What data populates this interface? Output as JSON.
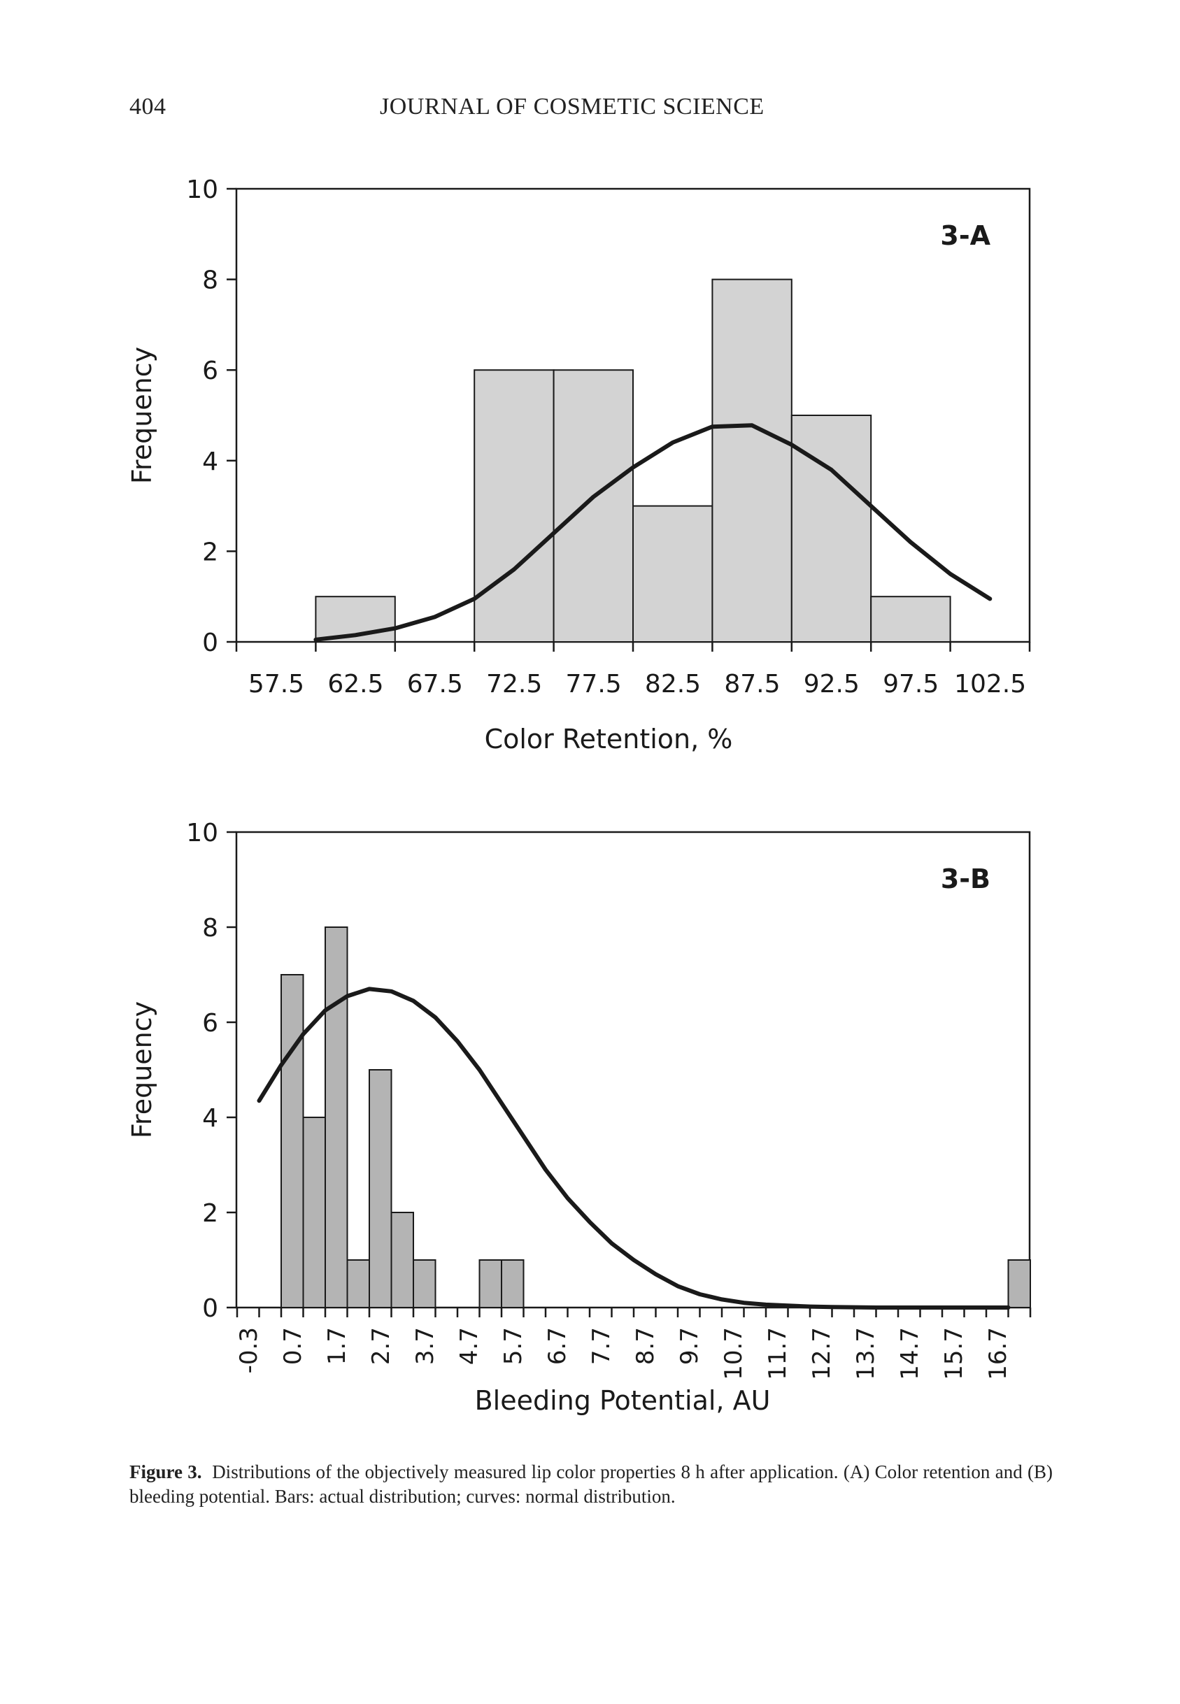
{
  "header": {
    "page_number": "404",
    "journal": "JOURNAL OF COSMETIC SCIENCE"
  },
  "chart_data": [
    {
      "type": "bar",
      "panel": "3-A",
      "xlabel": "Color Retention, %",
      "ylabel": "Frequency",
      "ylim": [
        0,
        10
      ],
      "yticks": [
        0,
        2,
        4,
        6,
        8,
        10
      ],
      "x_tick_labels": [
        "57.5",
        "62.5",
        "67.5",
        "72.5",
        "77.5",
        "82.5",
        "87.5",
        "92.5",
        "97.5",
        "102.5"
      ],
      "series": [
        {
          "name": "actual distribution",
          "values": [
            0,
            1,
            0,
            6,
            6,
            3,
            8,
            5,
            1
          ]
        },
        {
          "name": "normal distribution",
          "x": [
            60,
            62.5,
            65,
            67.5,
            70,
            72.5,
            75,
            77.5,
            80,
            82.5,
            85,
            87.5,
            90,
            92.5,
            95,
            97.5,
            100,
            102.5
          ],
          "values": [
            0.05,
            0.15,
            0.3,
            0.55,
            0.95,
            1.6,
            2.4,
            3.2,
            3.85,
            4.4,
            4.75,
            4.78,
            4.35,
            3.8,
            3.0,
            2.2,
            1.5,
            0.95
          ]
        }
      ]
    },
    {
      "type": "bar",
      "panel": "3-B",
      "xlabel": "Bleeding Potential, AU",
      "ylabel": "Frequency",
      "ylim": [
        0,
        10
      ],
      "yticks": [
        0,
        2,
        4,
        6,
        8,
        10
      ],
      "x_tick_labels": [
        "-0.3",
        "0.7",
        "1.7",
        "2.7",
        "3.7",
        "4.7",
        "5.7",
        "6.7",
        "7.7",
        "8.7",
        "9.7",
        "10.7",
        "11.7",
        "12.7",
        "13.7",
        "14.7",
        "15.7",
        "16.7"
      ],
      "series": [
        {
          "name": "actual distribution",
          "values": [
            0,
            0,
            7,
            4,
            8,
            1,
            5,
            2,
            1,
            0,
            0,
            1,
            1,
            0,
            0,
            0,
            0,
            0,
            0,
            0,
            0,
            0,
            0,
            0,
            0,
            0,
            0,
            0,
            0,
            0,
            0,
            0,
            0,
            0,
            0,
            1
          ]
        },
        {
          "name": "normal distribution",
          "x": [
            -0.3,
            0.2,
            0.7,
            1.2,
            1.7,
            2.2,
            2.7,
            3.2,
            3.7,
            4.2,
            4.7,
            5.2,
            5.7,
            6.2,
            6.7,
            7.2,
            7.7,
            8.2,
            8.7,
            9.2,
            9.7,
            10.2,
            10.7,
            11.2,
            11.7,
            12.2,
            12.7,
            13.7,
            14.7,
            15.7,
            16.7
          ],
          "values": [
            4.35,
            5.1,
            5.75,
            6.25,
            6.55,
            6.7,
            6.65,
            6.45,
            6.1,
            5.6,
            5.0,
            4.3,
            3.6,
            2.9,
            2.3,
            1.8,
            1.35,
            1.0,
            0.7,
            0.45,
            0.28,
            0.17,
            0.1,
            0.06,
            0.04,
            0.02,
            0.01,
            0.0,
            0.0,
            0.0,
            0.0
          ]
        }
      ]
    }
  ],
  "panels": {
    "a": {
      "label": "3-A"
    },
    "b": {
      "label": "3-B"
    }
  },
  "caption": {
    "figure_label": "Figure 3.",
    "text": "Distributions of the objectively measured lip color properties 8 h after application. (A) Color retention and (B) bleeding potential. Bars: actual distribution; curves: normal distribution."
  },
  "colors": {
    "bar_a": "#d3d3d3",
    "bar_b": "#b4b4b4",
    "stroke": "#1a1a1a"
  }
}
